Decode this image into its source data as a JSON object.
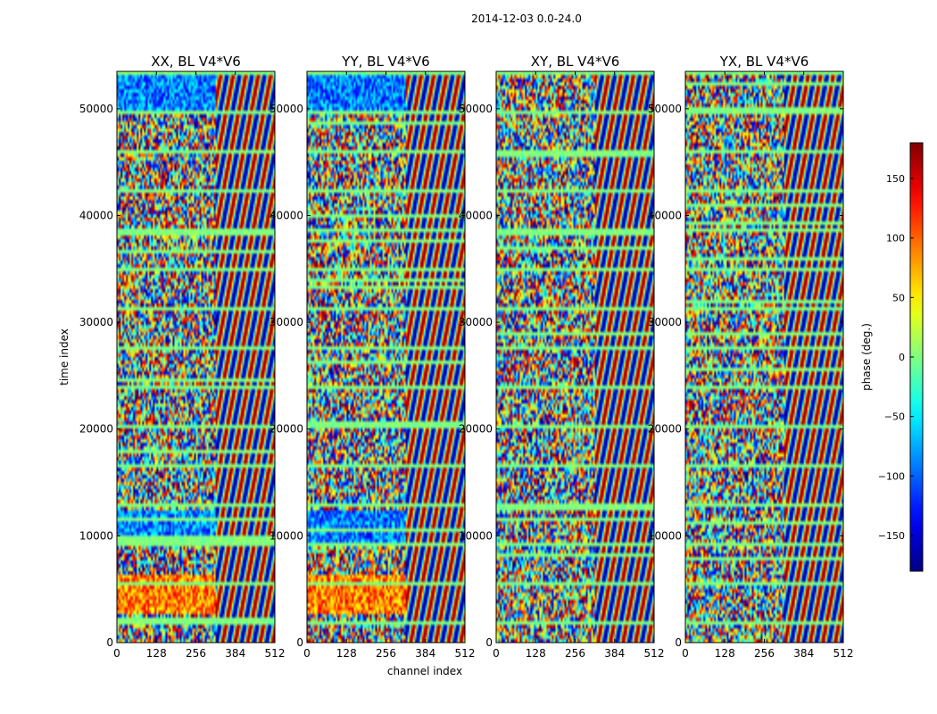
{
  "suptitle": "2014-12-03 0.0-24.0",
  "chart_data": {
    "type": "heatmap",
    "x_label": "channel index",
    "y_label": "time index",
    "x_ticks": [
      0,
      128,
      256,
      384,
      512
    ],
    "y_ticks": [
      0,
      10000,
      20000,
      30000,
      40000,
      50000
    ],
    "x_range": [
      0,
      512
    ],
    "y_range": [
      0,
      53500
    ],
    "colormap": "jet",
    "panels": [
      {
        "title": "XX, BL V4*V6"
      },
      {
        "title": "YY, BL V4*V6"
      },
      {
        "title": "XY, BL V4*V6"
      },
      {
        "title": "YX, BL V4*V6"
      }
    ],
    "colorbar": {
      "label": "phase (deg.)",
      "range": [
        -180,
        180
      ],
      "ticks": [
        -150,
        -100,
        -50,
        0,
        50,
        100,
        150
      ],
      "tick_labels": [
        "−150",
        "−100",
        "−50",
        "0",
        "50",
        "100",
        "150"
      ]
    }
  },
  "colors": {
    "axis": "#000000",
    "background": "#ffffff"
  }
}
